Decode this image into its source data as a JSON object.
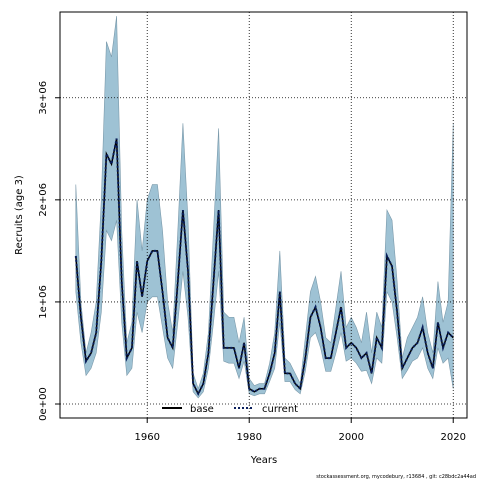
{
  "chart_data": {
    "type": "line",
    "xlabel": "Years",
    "ylabel": "Recruits (age 3)",
    "footer": "stockassessment.org, mycodebury, r13684 , git: c28bdc2a44ad",
    "x": [
      1946,
      1947,
      1948,
      1949,
      1950,
      1951,
      1952,
      1953,
      1954,
      1955,
      1956,
      1957,
      1958,
      1959,
      1960,
      1961,
      1962,
      1963,
      1964,
      1965,
      1966,
      1967,
      1968,
      1969,
      1970,
      1971,
      1972,
      1973,
      1974,
      1975,
      1976,
      1977,
      1978,
      1979,
      1980,
      1981,
      1982,
      1983,
      1984,
      1985,
      1986,
      1987,
      1988,
      1989,
      1990,
      1991,
      1992,
      1993,
      1994,
      1995,
      1996,
      1997,
      1998,
      1999,
      2000,
      2001,
      2002,
      2003,
      2004,
      2005,
      2006,
      2007,
      2008,
      2009,
      2010,
      2011,
      2012,
      2013,
      2014,
      2015,
      2016,
      2017,
      2018,
      2019,
      2020
    ],
    "series": [
      {
        "name": "base",
        "color": "#000000",
        "dash": "solid",
        "values": [
          1450000,
          850000,
          420000,
          500000,
          700000,
          1400000,
          2450000,
          2350000,
          2600000,
          1200000,
          450000,
          550000,
          1400000,
          1050000,
          1400000,
          1500000,
          1500000,
          1100000,
          650000,
          550000,
          1200000,
          1900000,
          1300000,
          200000,
          100000,
          200000,
          500000,
          1200000,
          1900000,
          550000,
          550000,
          550000,
          350000,
          600000,
          150000,
          120000,
          150000,
          150000,
          300000,
          500000,
          1100000,
          300000,
          300000,
          200000,
          150000,
          450000,
          850000,
          950000,
          750000,
          450000,
          450000,
          700000,
          950000,
          550000,
          600000,
          550000,
          450000,
          500000,
          300000,
          650000,
          550000,
          1450000,
          1350000,
          900000,
          350000,
          450000,
          550000,
          600000,
          750000,
          500000,
          350000,
          800000,
          550000,
          700000,
          650000
        ]
      },
      {
        "name": "current",
        "color": "#0a1f5c",
        "dash": "dotted",
        "values": [
          1450000,
          850000,
          420000,
          500000,
          700000,
          1400000,
          2450000,
          2350000,
          2600000,
          1200000,
          450000,
          550000,
          1400000,
          1050000,
          1400000,
          1500000,
          1500000,
          1100000,
          650000,
          550000,
          1200000,
          1900000,
          1300000,
          200000,
          100000,
          200000,
          500000,
          1200000,
          1900000,
          550000,
          550000,
          550000,
          350000,
          600000,
          150000,
          120000,
          150000,
          150000,
          300000,
          500000,
          1100000,
          300000,
          300000,
          200000,
          150000,
          450000,
          850000,
          950000,
          750000,
          450000,
          450000,
          700000,
          950000,
          550000,
          600000,
          550000,
          450000,
          500000,
          300000,
          650000,
          550000,
          1450000,
          1350000,
          900000,
          350000,
          450000,
          550000,
          600000,
          750000,
          500000,
          350000,
          800000,
          550000,
          700000,
          650000
        ]
      }
    ],
    "band": {
      "color": "#9ec2d4",
      "upper": [
        2150000,
        1000000,
        500000,
        700000,
        1000000,
        2000000,
        3550000,
        3400000,
        3800000,
        1700000,
        600000,
        800000,
        2000000,
        1500000,
        2000000,
        2150000,
        2150000,
        1700000,
        1000000,
        700000,
        1700000,
        2750000,
        1800000,
        300000,
        150000,
        300000,
        700000,
        1700000,
        2700000,
        900000,
        850000,
        850000,
        600000,
        850000,
        250000,
        180000,
        200000,
        200000,
        400000,
        700000,
        1500000,
        450000,
        400000,
        300000,
        200000,
        650000,
        1100000,
        1250000,
        1000000,
        650000,
        600000,
        950000,
        1300000,
        750000,
        850000,
        750000,
        600000,
        900000,
        500000,
        900000,
        750000,
        1900000,
        1800000,
        1200000,
        450000,
        650000,
        750000,
        850000,
        1050000,
        700000,
        500000,
        1200000,
        800000,
        1000000,
        2750000
      ],
      "lower": [
        1100000,
        600000,
        280000,
        350000,
        500000,
        900000,
        1700000,
        1600000,
        1800000,
        800000,
        280000,
        350000,
        900000,
        700000,
        1000000,
        1050000,
        1050000,
        750000,
        450000,
        350000,
        800000,
        1300000,
        850000,
        120000,
        60000,
        120000,
        350000,
        800000,
        1300000,
        420000,
        400000,
        400000,
        250000,
        420000,
        100000,
        80000,
        100000,
        100000,
        220000,
        350000,
        800000,
        220000,
        220000,
        140000,
        100000,
        320000,
        650000,
        700000,
        550000,
        320000,
        320000,
        500000,
        700000,
        420000,
        450000,
        400000,
        320000,
        330000,
        200000,
        450000,
        400000,
        1100000,
        1000000,
        650000,
        250000,
        330000,
        420000,
        450000,
        550000,
        350000,
        250000,
        550000,
        400000,
        450000,
        150000
      ]
    },
    "xlim": [
      1942.9,
      2022.7
    ],
    "ylim": [
      -137000,
      3840000
    ],
    "xticks": [
      1960,
      1980,
      2000,
      2020
    ],
    "yticks": [
      {
        "value": 0,
        "label": "0e+00"
      },
      {
        "value": 1000000,
        "label": "1e+06"
      },
      {
        "value": 2000000,
        "label": "2e+06"
      },
      {
        "value": 3000000,
        "label": "3e+06"
      }
    ],
    "grid": true,
    "legend": "bottom"
  }
}
